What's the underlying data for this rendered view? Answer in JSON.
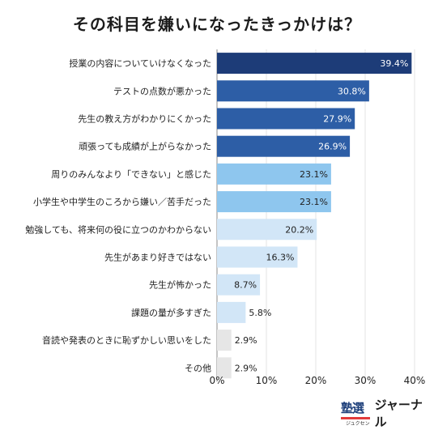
{
  "title": "その科目を嫌いになったきっかけは？",
  "brand": {
    "logo_text": "塾選",
    "logo_kana": "ジュクセン",
    "name": "ジャーナル"
  },
  "colors": {
    "bar_top": "#1d3c78",
    "bar_dark": "#2d5ea6",
    "bar_light": "#8ec6ee",
    "bar_pale": "#d2e6f7",
    "bar_gray": "#e6e6e6",
    "grid": "#e3e3e3",
    "axis": "#8a8a8a"
  },
  "chart_data": {
    "type": "bar",
    "orientation": "horizontal",
    "title": "その科目を嫌いになったきっかけは？",
    "categories": [
      "授業の内容についていけなくなった",
      "テストの点数が悪かった",
      "先生の教え方がわかりにくかった",
      "頑張っても成績が上がらなかった",
      "周りのみんなより「できない」と感じた",
      "小学生や中学生のころから嫌い／苦手だった",
      "勉強しても、将来何の役に立つのかわからない",
      "先生があまり好きではない",
      "先生が怖かった",
      "課題の量が多すぎた",
      "音読や発表のときに恥ずかしい思いをした",
      "その他"
    ],
    "values": [
      39.4,
      30.8,
      27.9,
      26.9,
      23.1,
      23.1,
      20.2,
      16.3,
      8.7,
      5.8,
      2.9,
      2.9
    ],
    "value_labels": [
      "39.4%",
      "30.8%",
      "27.9%",
      "26.9%",
      "23.1%",
      "23.1%",
      "20.2%",
      "16.3%",
      "8.7%",
      "5.8%",
      "2.9%",
      "2.9%"
    ],
    "color_groups": [
      "top",
      "dark",
      "dark",
      "dark",
      "light",
      "light",
      "pale",
      "pale",
      "pale",
      "pale",
      "gray",
      "gray"
    ],
    "xlim": [
      0,
      40
    ],
    "xticks": [
      "0%",
      "10%",
      "20%",
      "30%",
      "40%"
    ],
    "xtick_values": [
      0,
      10,
      20,
      30,
      40
    ],
    "grid": true,
    "legend": "none"
  }
}
